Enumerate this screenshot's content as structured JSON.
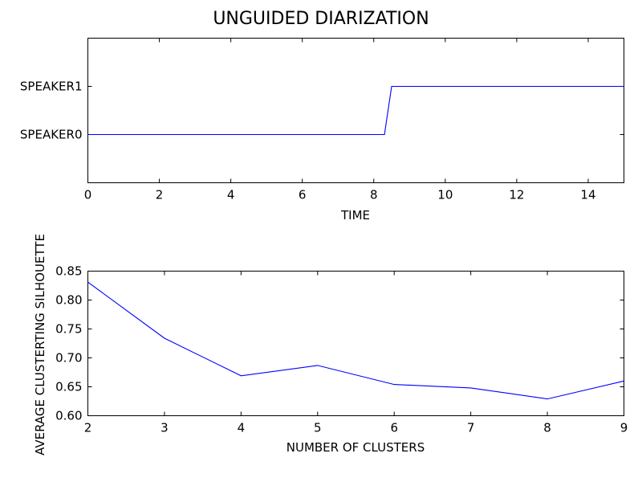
{
  "title": "UNGUIDED DIARIZATION",
  "chart_data": [
    {
      "type": "line",
      "xlabel": "TIME",
      "ylabel": "",
      "xlim": [
        0,
        15
      ],
      "ylim": [
        -1,
        2
      ],
      "xticks": [
        "0",
        "2",
        "4",
        "6",
        "8",
        "10",
        "12",
        "14"
      ],
      "yticks": [
        "SPEAKER0",
        "SPEAKER1"
      ],
      "x": [
        0,
        8.3,
        8.5,
        15
      ],
      "y": [
        0,
        0,
        1,
        1
      ],
      "color": "#0000ff"
    },
    {
      "type": "line",
      "xlabel": "NUMBER OF CLUSTERS",
      "ylabel": "AVERAGE CLUSTERTING SILHOUETTE",
      "xlim": [
        2,
        9
      ],
      "ylim": [
        0.6,
        0.85
      ],
      "xticks": [
        "2",
        "3",
        "4",
        "5",
        "6",
        "7",
        "8",
        "9"
      ],
      "yticks": [
        "0.60",
        "0.65",
        "0.70",
        "0.75",
        "0.80",
        "0.85"
      ],
      "x": [
        2,
        3,
        4,
        5,
        6,
        7,
        8,
        9
      ],
      "y": [
        0.831,
        0.734,
        0.669,
        0.687,
        0.654,
        0.648,
        0.629,
        0.66
      ],
      "color": "#0000ff"
    }
  ]
}
